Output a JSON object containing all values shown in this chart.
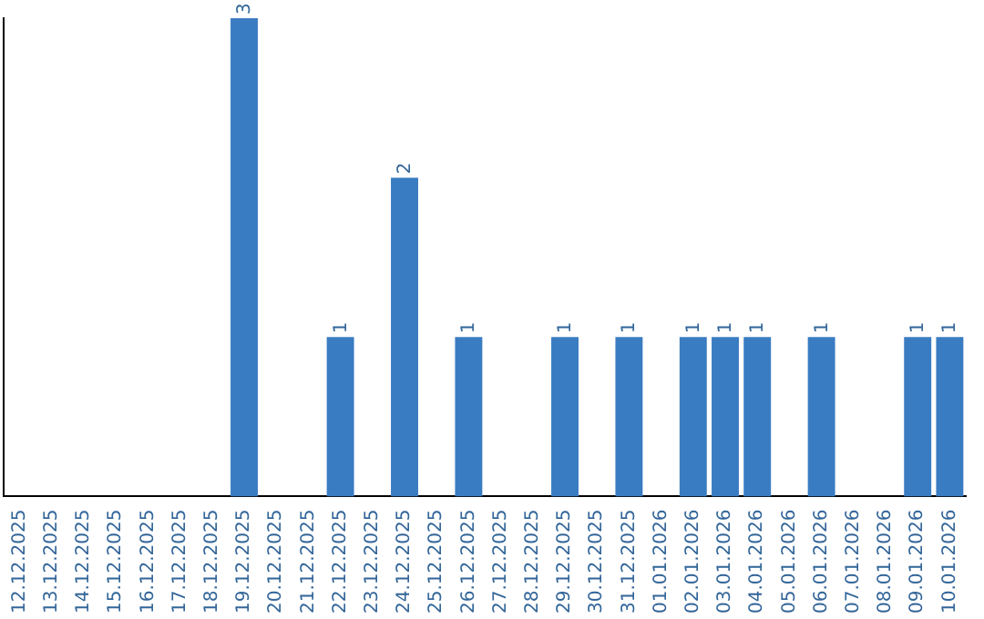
{
  "chart_data": {
    "type": "bar",
    "categories": [
      "12.12.2025",
      "13.12.2025",
      "14.12.2025",
      "15.12.2025",
      "16.12.2025",
      "17.12.2025",
      "18.12.2025",
      "19.12.2025",
      "20.12.2025",
      "21.12.2025",
      "22.12.2025",
      "23.12.2025",
      "24.12.2025",
      "25.12.2025",
      "26.12.2025",
      "27.12.2025",
      "28.12.2025",
      "29.12.2025",
      "30.12.2025",
      "31.12.2025",
      "01.01.2026",
      "02.01.2026",
      "03.01.2026",
      "04.01.2026",
      "05.01.2026",
      "06.01.2026",
      "07.01.2026",
      "08.01.2026",
      "09.01.2026",
      "10.01.2026"
    ],
    "values": [
      0,
      0,
      0,
      0,
      0,
      0,
      0,
      3,
      0,
      0,
      1,
      0,
      2,
      0,
      1,
      0,
      0,
      1,
      0,
      1,
      0,
      1,
      1,
      1,
      0,
      1,
      0,
      0,
      1,
      1
    ],
    "value_labels": [
      null,
      null,
      null,
      null,
      null,
      null,
      null,
      "3",
      null,
      null,
      "1",
      null,
      "2",
      null,
      "1",
      null,
      null,
      "1",
      null,
      "1",
      null,
      "1",
      "1",
      "1",
      null,
      "1",
      null,
      null,
      "1",
      "1"
    ],
    "color": "#3a7cc1",
    "tick_labels": "x",
    "grid": false,
    "legend": false
  }
}
